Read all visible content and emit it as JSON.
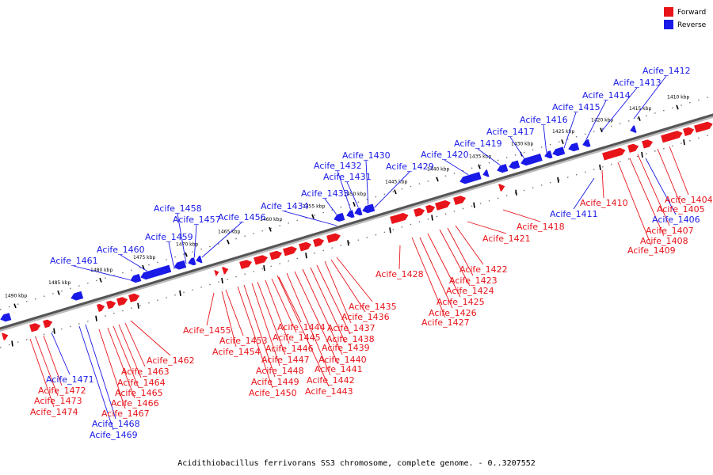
{
  "colors": {
    "forward": "#e8141a",
    "reverse": "#1a1ae8",
    "backbone": "#555555",
    "leader_forward": "#e8141a",
    "leader_reverse": "#1a1ae8"
  },
  "legend": {
    "forward_label": "Forward",
    "reverse_label": "Reverse"
  },
  "caption": "Acidithiobacillus ferrivorans SS3 chromosome, complete genome. - 0..3207552",
  "kbp_ticks": [
    "1410 kbp",
    "1415 kbp",
    "1420 kbp",
    "1425 kbp",
    "1430 kbp",
    "1435 kbp",
    "1440 kbp",
    "1445 kbp",
    "1450 kbp",
    "1455 kbp",
    "1460 kbp",
    "1465 kbp",
    "1470 kbp",
    "1475 kbp",
    "1480 kbp",
    "1485 kbp",
    "1490 kbp"
  ],
  "reverse_genes": [
    "Acife_1412",
    "Acife_1413",
    "Acife_1414",
    "Acife_1415",
    "Acife_1416",
    "Acife_1417",
    "Acife_1419",
    "Acife_1420",
    "Acife_1429",
    "Acife_1430",
    "Acife_1431",
    "Acife_1432",
    "Acife_1433",
    "Acife_1434",
    "Acife_1456",
    "Acife_1457",
    "Acife_1458",
    "Acife_1459",
    "Acife_1460",
    "Acife_1461",
    "Acife_1411",
    "Acife_1406",
    "Acife_1471",
    "Acife_1468",
    "Acife_1469"
  ],
  "forward_genes": [
    "Acife_1404",
    "Acife_1405",
    "Acife_1407",
    "Acife_1408",
    "Acife_1409",
    "Acife_1410",
    "Acife_1418",
    "Acife_1421",
    "Acife_1422",
    "Acife_1423",
    "Acife_1424",
    "Acife_1425",
    "Acife_1426",
    "Acife_1427",
    "Acife_1428",
    "Acife_1435",
    "Acife_1436",
    "Acife_1437",
    "Acife_1438",
    "Acife_1439",
    "Acife_1440",
    "Acife_1441",
    "Acife_1442",
    "Acife_1443",
    "Acife_1444",
    "Acife_1445",
    "Acife_1446",
    "Acife_1447",
    "Acife_1448",
    "Acife_1449",
    "Acife_1450",
    "Acife_1453",
    "Acife_1454",
    "Acife_1455",
    "Acife_1462",
    "Acife_1463",
    "Acife_1464",
    "Acife_1465",
    "Acife_1466",
    "Acife_1467",
    "Acife_1472",
    "Acife_1473",
    "Acife_1474"
  ]
}
